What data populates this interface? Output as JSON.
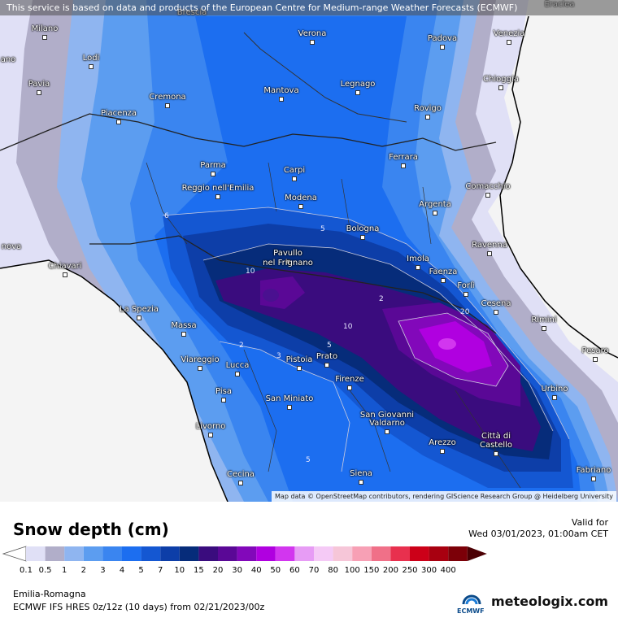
{
  "banner": "This service is based on data and products of the European Centre for Medium-range Weather Forecasts (ECMWF)",
  "attribution": "Map data © OpenStreetMap contributors, rendering GIScience Research Group @ Heidelberg University",
  "title": "Snow depth (cm)",
  "valid_label": "Valid for",
  "valid_time": "Wed 03/01/2023, 01:00am CET",
  "region": "Emilia-Romagna",
  "model_info": "ECMWF IFS HRES 0z/12z (10 days) from  02/21/2023/00z",
  "logos": {
    "ecmwf": "ECMWF",
    "meteologix": "meteologix.com"
  },
  "legend": {
    "labels": [
      "0.1",
      "0.5",
      "1",
      "2",
      "3",
      "4",
      "5",
      "7",
      "10",
      "15",
      "20",
      "30",
      "40",
      "50",
      "60",
      "70",
      "80",
      "100",
      "150",
      "200",
      "250",
      "300",
      "400"
    ],
    "colors": [
      "#e0e0f6",
      "#b1aec9",
      "#8fb5f0",
      "#5c9df0",
      "#3a85f0",
      "#1c6ef0",
      "#1457d2",
      "#0d3ea8",
      "#062c7a",
      "#3a0c7e",
      "#5a0896",
      "#8208ba",
      "#b000e0",
      "#d236ef",
      "#e79cf5",
      "#f5caf6",
      "#f6c6d8",
      "#f7a0b5",
      "#f07088",
      "#e8304e",
      "#cc0018",
      "#a80010",
      "#7c0008",
      "#4c0004"
    ]
  },
  "contour_labels": [
    {
      "text": "6"
    },
    {
      "text": "5"
    },
    {
      "text": "10"
    },
    {
      "text": "10"
    },
    {
      "text": "20"
    },
    {
      "text": "2"
    },
    {
      "text": "5"
    },
    {
      "text": "5"
    },
    {
      "text": "2"
    },
    {
      "text": "3"
    }
  ],
  "cities": [
    {
      "name": "Milano"
    },
    {
      "name": "Brescia"
    },
    {
      "name": "Verona"
    },
    {
      "name": "Padova"
    },
    {
      "name": "Venezia"
    },
    {
      "name": "Eraclea"
    },
    {
      "name": "Lodi"
    },
    {
      "name": "Pavia"
    },
    {
      "name": "Cremona"
    },
    {
      "name": "Mantova"
    },
    {
      "name": "Legnago"
    },
    {
      "name": "Chioggia"
    },
    {
      "name": "Rovigo"
    },
    {
      "name": "Piacenza"
    },
    {
      "name": "Ferrara"
    },
    {
      "name": "Parma"
    },
    {
      "name": "Carpi"
    },
    {
      "name": "Comacchio"
    },
    {
      "name": "Reggio nell'Emilia"
    },
    {
      "name": "Modena"
    },
    {
      "name": "Argenta"
    },
    {
      "name": "Bologna"
    },
    {
      "name": "Ravenna"
    },
    {
      "name": "Chiavari"
    },
    {
      "name": "Pavullo"
    },
    {
      "name": "nel Frignano"
    },
    {
      "name": "Imola"
    },
    {
      "name": "Faenza"
    },
    {
      "name": "Forlì"
    },
    {
      "name": "Cesena"
    },
    {
      "name": "La Spezia"
    },
    {
      "name": "Rimini"
    },
    {
      "name": "Massa"
    },
    {
      "name": "Pesaro"
    },
    {
      "name": "Viareggio"
    },
    {
      "name": "Pistoia"
    },
    {
      "name": "Prato"
    },
    {
      "name": "Lucca"
    },
    {
      "name": "Firenze"
    },
    {
      "name": "Pisa"
    },
    {
      "name": "San Miniato"
    },
    {
      "name": "Urbino"
    },
    {
      "name": "San Giovanni"
    },
    {
      "name": "Valdarno"
    },
    {
      "name": "Livorno"
    },
    {
      "name": "Arezzo"
    },
    {
      "name": "Città di"
    },
    {
      "name": "Castello"
    },
    {
      "name": "Cecina"
    },
    {
      "name": "Siena"
    },
    {
      "name": "Fabriano"
    },
    {
      "name": "nova"
    },
    {
      "name": "ano"
    }
  ]
}
